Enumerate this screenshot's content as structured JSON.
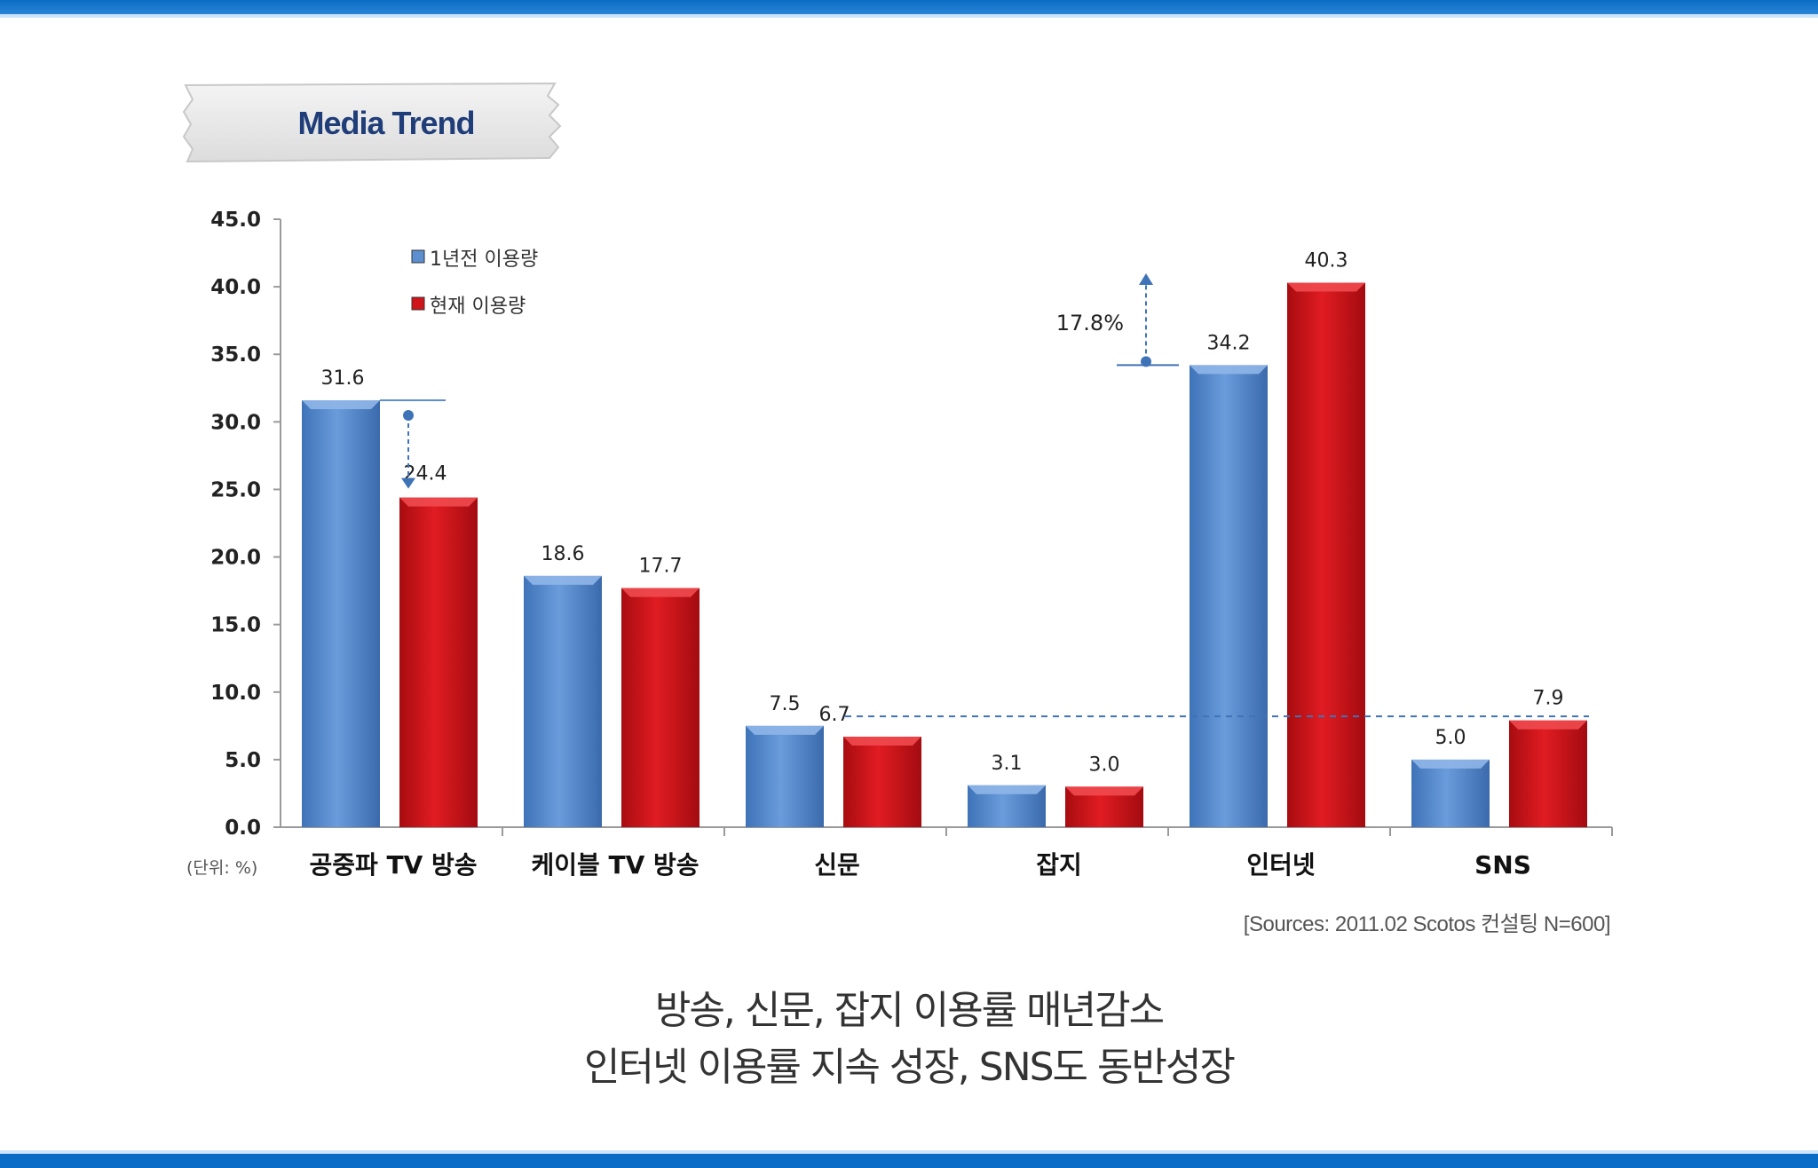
{
  "header": {
    "title": "Media Trend"
  },
  "chart_data": {
    "type": "bar",
    "categories": [
      "공중파 TV 방송",
      "케이블 TV 방송",
      "신문",
      "잡지",
      "인터넷",
      "SNS"
    ],
    "series": [
      {
        "name": "1년전 이용량",
        "color": "#5b8fd0",
        "values": [
          31.6,
          18.6,
          7.5,
          3.1,
          34.2,
          5.0
        ]
      },
      {
        "name": "현재 이용량",
        "color": "#d0141a",
        "values": [
          24.4,
          17.7,
          6.7,
          3.0,
          40.3,
          7.9
        ]
      }
    ],
    "value_labels": [
      [
        "31.6",
        "18.6",
        "7.5",
        "3.1",
        "34.2",
        "5.0"
      ],
      [
        "24.4",
        "17.7",
        "6.7",
        "3.0",
        "40.3",
        "7.9"
      ]
    ],
    "ylim": [
      0,
      45
    ],
    "yticks": [
      "0.0",
      "5.0",
      "10.0",
      "15.0",
      "20.0",
      "25.0",
      "30.0",
      "35.0",
      "40.0",
      "45.0"
    ],
    "y_unit_label": "(단위: %)",
    "legend_position": "top-left",
    "annotations": {
      "internet_growth": "17.8%"
    },
    "grid": false
  },
  "source": "[Sources: 2011.02 Scotos 컨설팅 N=600]",
  "caption": {
    "line1": "방송, 신문, 잡지 이용률 매년감소",
    "line2": "인터넷 이용률 지속 성장, SNS도 동반성장"
  }
}
